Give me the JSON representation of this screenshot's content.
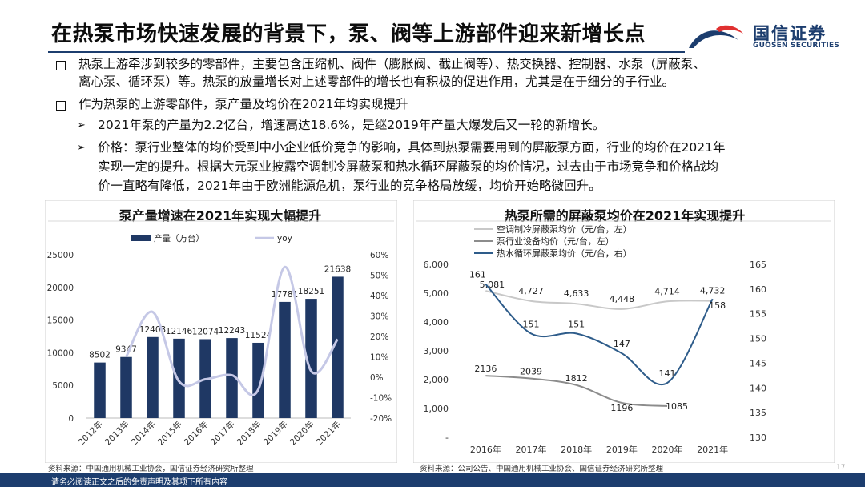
{
  "header": {
    "title": "在热泵市场快速发展的背景下，泵、阀等上游部件迎来新增长点",
    "logo_cn": "国信证券",
    "logo_en": "GUOSEN SECURITIES"
  },
  "bullets": {
    "b1_line1": "热泵上游牵涉到较多的零部件，主要包含压缩机、阀件（膨胀阀、截止阀等）、热交换器、控制器、水泵（屏蔽泵、",
    "b1_line2": "离心泵、循环泵）等。热泵的放量增长对上述零部件的增长也有积极的促进作用，尤其是在于细分的子行业。",
    "b2": "作为热泵的上游零部件，泵产量及均价在2021年均实现提升",
    "s1": "2021年泵的产量为2.2亿台，增速高达18.6%，是继2019年产量大爆发后又一轮的新增长。",
    "s2_line1": "价格：泵行业整体的均价受到中小企业低价竞争的影响，具体到热泵需要用到的屏蔽泵方面，行业的均价在2021年",
    "s2_line2": "实现一定的提升。根据大元泵业披露空调制冷屏蔽泵和热水循环屏蔽泵的均价情况，过去由于市场竞争和价格战均",
    "s2_line3": "价一直略有降低，2021年由于欧洲能源危机，泵行业的竞争格局放缓，均价开始略微回升。"
  },
  "left_panel": {
    "title": "泵产量增速在2021年实现大幅提升",
    "source": "资料来源：中国通用机械工业协会，国信证券经济研究所整理"
  },
  "right_panel": {
    "title": "热泵所需的屏蔽泵均价在2021年实现提升",
    "source": "资料来源：公司公告、中国通用机械工业协会、国信证券经济研究所整理"
  },
  "footer": {
    "disclaimer": "请务必阅读正文之后的免责声明及其项下所有内容",
    "page": "17"
  },
  "colors": {
    "navy": "#1c3d6e",
    "bar": "#1f3864",
    "yoy_line": "#c5c8e6",
    "line_ac": "#c8c8c8",
    "line_pump": "#8c8c8c",
    "line_hot": "#2e5c8a",
    "logo_red": "#e03030"
  },
  "chart_data": [
    {
      "type": "bar",
      "title": "泵产量增速在2021年实现大幅提升",
      "categories": [
        "2012年",
        "2013年",
        "2014年",
        "2015年",
        "2016年",
        "2017年",
        "2018年",
        "2019年",
        "2020年",
        "2021年"
      ],
      "series": [
        {
          "name": "产量（万台）",
          "type": "bar",
          "axis": "left",
          "values": [
            8502,
            9347,
            12403,
            12146,
            12074,
            12243,
            11524,
            17781,
            18251,
            21638
          ]
        },
        {
          "name": "yoy",
          "type": "line",
          "axis": "right",
          "values": [
            null,
            10,
            32,
            -2,
            -1,
            1,
            -6,
            54,
            3,
            18.6
          ]
        }
      ],
      "y_left": {
        "min": 0,
        "max": 25000,
        "ticks": [
          0,
          5000,
          10000,
          15000,
          20000,
          25000
        ],
        "tick_labels": [
          "0",
          "5000",
          "10000",
          "15000",
          "20000",
          "25000"
        ]
      },
      "y_right": {
        "min": -20,
        "max": 60,
        "ticks": [
          -20,
          -10,
          0,
          10,
          20,
          30,
          40,
          50,
          60
        ],
        "tick_labels": [
          "-20%",
          "-10%",
          "0%",
          "10%",
          "20%",
          "30%",
          "40%",
          "50%",
          "60%"
        ]
      },
      "legend": "top"
    },
    {
      "type": "line",
      "title": "热泵所需的屏蔽泵均价在2021年实现提升",
      "categories": [
        "2016年",
        "2017年",
        "2018年",
        "2019年",
        "2020年",
        "2021年"
      ],
      "series": [
        {
          "name": "空调制冷屏蔽泵均价（元/台，左）",
          "axis": "left",
          "values": [
            5081,
            4727,
            4633,
            4448,
            4714,
            4732
          ],
          "labels": [
            "5,081",
            "4,727",
            "4,633",
            "4,448",
            "4,714",
            "4,732"
          ]
        },
        {
          "name": "泵行业设备均价（元/台，左）",
          "axis": "left",
          "values": [
            2136,
            2039,
            1812,
            1196,
            1085,
            null
          ],
          "labels": [
            "2136",
            "2039",
            "1812",
            "1196",
            "1085",
            ""
          ]
        },
        {
          "name": "热水循环屏蔽泵均价（元/台，右）",
          "axis": "right",
          "values": [
            161,
            151,
            151,
            147,
            141,
            158
          ],
          "labels": [
            "161",
            "151",
            "151",
            "147",
            "141",
            "158"
          ]
        }
      ],
      "y_left": {
        "min": 0,
        "max": 6000,
        "ticks": [
          0,
          1000,
          2000,
          3000,
          4000,
          5000,
          6000
        ],
        "tick_labels": [
          "-",
          "1,000",
          "2,000",
          "3,000",
          "4,000",
          "5,000",
          "6,000"
        ]
      },
      "y_right": {
        "min": 130,
        "max": 165,
        "ticks": [
          130,
          135,
          140,
          145,
          150,
          155,
          160,
          165
        ],
        "tick_labels": [
          "130",
          "135",
          "140",
          "145",
          "150",
          "155",
          "160",
          "165"
        ]
      },
      "legend": "top"
    }
  ]
}
